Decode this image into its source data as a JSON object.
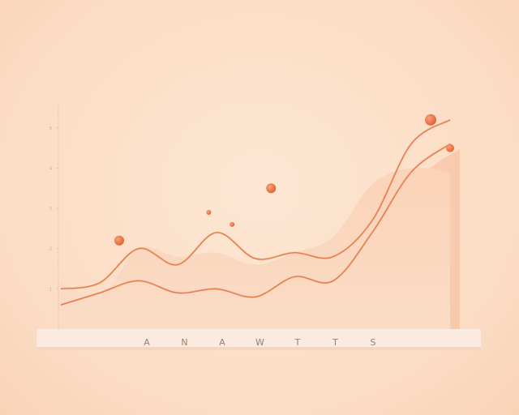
{
  "chart_data": {
    "type": "line",
    "x": [
      0,
      1,
      2,
      3,
      4,
      5,
      6,
      7,
      8,
      9,
      10
    ],
    "series": [
      {
        "values": [
          1.0,
          1.15,
          2.0,
          1.6,
          2.4,
          1.75,
          1.9,
          1.8,
          2.7,
          4.6,
          5.2
        ]
      },
      {
        "values": [
          0.6,
          0.9,
          1.2,
          0.9,
          1.0,
          0.8,
          1.3,
          1.2,
          2.4,
          3.9,
          4.6
        ]
      }
    ],
    "area_values": [
      1.2,
      0.8,
      2.0,
      1.8,
      1.9,
      1.6,
      1.9,
      2.3,
      3.6,
      4.0,
      3.9
    ],
    "points": [
      {
        "x": 1.5,
        "y": 2.2
      },
      {
        "x": 3.8,
        "y": 2.9
      },
      {
        "x": 4.4,
        "y": 2.6
      },
      {
        "x": 5.4,
        "y": 3.5
      },
      {
        "x": 9.5,
        "y": 5.2
      },
      {
        "x": 10.0,
        "y": 4.5
      }
    ],
    "y_ticks": [
      1,
      2,
      3,
      4,
      5
    ],
    "ylim": [
      0,
      5.6
    ],
    "xlim": [
      0,
      10
    ],
    "grid": false,
    "caption_letters": [
      "A",
      "N",
      "A",
      "W",
      "T",
      "T",
      "S"
    ],
    "colors": {
      "line": "#e37848",
      "line_light": "#f2b58e",
      "area": "#f9c9ab",
      "point": "#ec6f42",
      "base": "#fbe9dc"
    }
  }
}
